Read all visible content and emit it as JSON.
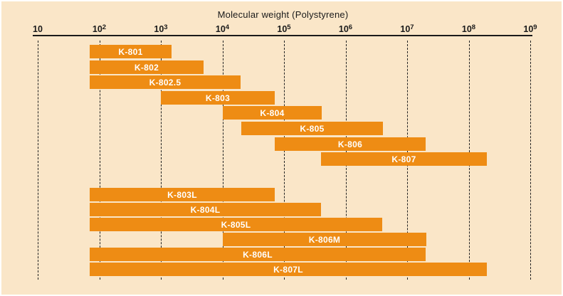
{
  "chart_data": {
    "type": "bar",
    "orientation": "horizontal-range",
    "title": "Molecular weight (Polystyrene)",
    "x_axis": {
      "scale": "log",
      "min": 10,
      "max": 1000000000,
      "tick_labels": [
        {
          "base": "10",
          "exp": ""
        },
        {
          "base": "10",
          "exp": "2"
        },
        {
          "base": "10",
          "exp": "3"
        },
        {
          "base": "10",
          "exp": "4"
        },
        {
          "base": "10",
          "exp": "5"
        },
        {
          "base": "10",
          "exp": "6"
        },
        {
          "base": "10",
          "exp": "7"
        },
        {
          "base": "10",
          "exp": "8"
        },
        {
          "base": "10",
          "exp": "9"
        }
      ],
      "gridlines": true,
      "gridline_style": "dashed"
    },
    "groups": [
      {
        "bars": [
          {
            "label": "K-801",
            "mw_min": 70,
            "mw_max": 1500
          },
          {
            "label": "K-802",
            "mw_min": 70,
            "mw_max": 5000
          },
          {
            "label": "K-802.5",
            "mw_min": 70,
            "mw_max": 20000
          },
          {
            "label": "K-803",
            "mw_min": 1000,
            "mw_max": 70000
          },
          {
            "label": "K-804",
            "mw_min": 10000,
            "mw_max": 400000
          },
          {
            "label": "K-805",
            "mw_min": 20000,
            "mw_max": 4000000
          },
          {
            "label": "K-806",
            "mw_min": 70000,
            "mw_max": 20000000
          },
          {
            "label": "K-807",
            "mw_min": 400000,
            "mw_max": 200000000
          }
        ]
      },
      {
        "bars": [
          {
            "label": "K-803L",
            "mw_min": 70,
            "mw_max": 70000
          },
          {
            "label": "K-804L",
            "mw_min": 70,
            "mw_max": 400000
          },
          {
            "label": "K-805L",
            "mw_min": 70,
            "mw_max": 4000000
          },
          {
            "label": "K-806M",
            "mw_min": 10000,
            "mw_max": 20000000
          },
          {
            "label": "K-806L",
            "mw_min": 70,
            "mw_max": 20000000
          },
          {
            "label": "K-807L",
            "mw_min": 70,
            "mw_max": 200000000
          }
        ]
      }
    ],
    "colors": {
      "background": "#FAE6C8",
      "bar": "#EE8C14",
      "bar_label": "#FFFFFF",
      "axis": "#1A1A1A"
    }
  }
}
